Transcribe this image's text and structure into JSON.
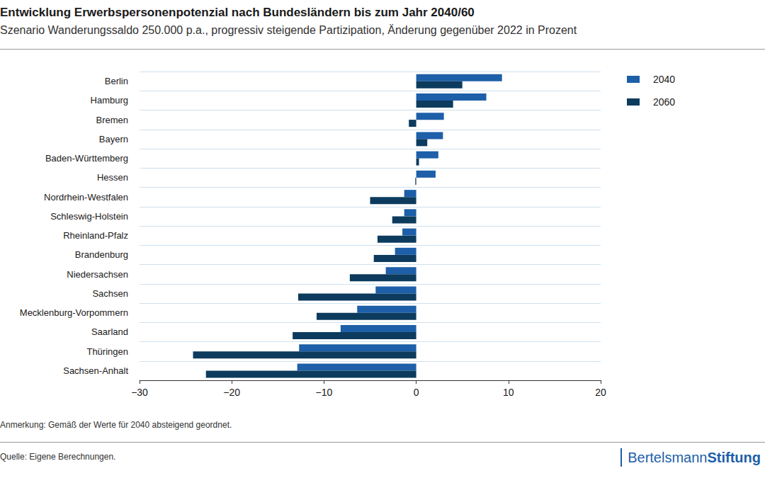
{
  "chart_data": {
    "type": "bar",
    "orientation": "horizontal",
    "title": "Entwicklung Erwerbspersonenpotenzial nach Bundesländern bis zum Jahr 2040/60",
    "subtitle": "Szenario Wanderungssaldo 250.000 p.a., progressiv steigende Partizipation, Änderung gegenüber 2022 in Prozent",
    "note": "Anmerkung: Gemäß der Werte für 2040 absteigend geordnet.",
    "source": "Quelle: Eigene Berechnungen.",
    "logo": [
      "Bertelsmann",
      "Stiftung"
    ],
    "categories": [
      "Berlin",
      "Hamburg",
      "Bremen",
      "Bayern",
      "Baden-Württemberg",
      "Hessen",
      "Nordrhein-Westfalen",
      "Schleswig-Holstein",
      "Rheinland-Pfalz",
      "Brandenburg",
      "Niedersachsen",
      "Sachsen",
      "Mecklenburg-Vorpommern",
      "Saarland",
      "Thüringen",
      "Sachsen-Anhalt"
    ],
    "series": [
      {
        "name": "2040",
        "color": "#1d5fa8",
        "values": [
          9.3,
          7.6,
          3.0,
          2.9,
          2.4,
          2.1,
          -1.3,
          -1.3,
          -1.5,
          -2.3,
          -3.3,
          -4.4,
          -6.4,
          -8.2,
          -12.7,
          -12.9
        ]
      },
      {
        "name": "2060",
        "color": "#0c3b5e",
        "values": [
          5.0,
          4.0,
          -0.8,
          1.2,
          0.3,
          -0.1,
          -5.0,
          -2.6,
          -4.2,
          -4.6,
          -7.2,
          -12.8,
          -10.8,
          -13.4,
          -24.2,
          -22.8
        ]
      }
    ],
    "xlim": [
      -30,
      20
    ],
    "xticks": [
      {
        "value": -30,
        "label": "−30"
      },
      {
        "value": -20,
        "label": "−20"
      },
      {
        "value": -10,
        "label": "−10"
      },
      0,
      10,
      20
    ],
    "grid": true,
    "legend": "top-right"
  }
}
